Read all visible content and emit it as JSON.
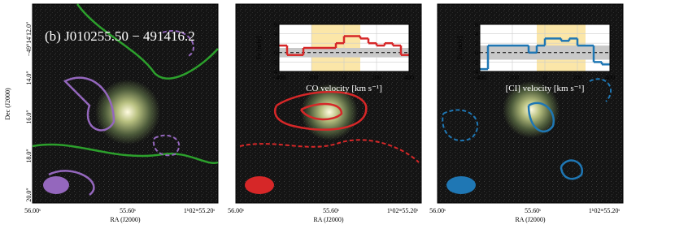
{
  "panel_label": "(b) J010255.50 − 491416.2",
  "y_axis_label": "Dec (J2000)",
  "y_ticks": [
    "−49°14′12.0″",
    "14.0″",
    "16.0″",
    "18.0″",
    "20.0″"
  ],
  "x_axis_label": "RA (J2000)",
  "x_ticks": [
    "56.00ˢ",
    "55.60ˢ",
    "1ʰ02ᵐ55.20ˢ"
  ],
  "chart_data": [
    {
      "type": "step",
      "xlabel": "CO velocity [km s⁻¹]",
      "ylabel": "Fν [mJy]",
      "color": "#d62728",
      "x": [
        -375,
        -325,
        -275,
        -225,
        -175,
        -125,
        -75,
        -25,
        25,
        75,
        125,
        175,
        225,
        275,
        325,
        375
      ],
      "values": [
        1.5,
        -0.5,
        -0.5,
        1,
        1,
        1,
        1,
        2,
        3.5,
        3.5,
        3,
        2,
        1.5,
        2,
        1.5,
        -0.5
      ],
      "xlim": [
        -400,
        400
      ],
      "ylim": [
        -4,
        6
      ],
      "xticks": [
        {
          "value": -400,
          "label": "−400"
        },
        {
          "value": -200,
          "label": "−200"
        },
        0,
        200,
        400
      ],
      "yticks": [
        {
          "value": -4,
          "label": "−4"
        },
        {
          "value": -2,
          "label": "−2"
        },
        0,
        2,
        4,
        6
      ],
      "shade_x": [
        -200,
        100
      ],
      "rms": 1
    },
    {
      "type": "step",
      "xlabel": "[CI] velocity [km s⁻¹]",
      "ylabel": "Fν [mJy]",
      "color": "#1f77b4",
      "x": [
        -375,
        -325,
        -275,
        -225,
        -175,
        -125,
        -75,
        -25,
        25,
        75,
        125,
        175,
        225,
        275,
        325,
        375
      ],
      "values": [
        -3.5,
        1.5,
        1.5,
        1.5,
        1.5,
        1.5,
        0,
        1.5,
        3,
        3,
        2.5,
        3,
        1.5,
        1.5,
        -2,
        -2.5
      ],
      "xlim": [
        -400,
        400
      ],
      "ylim": [
        -4,
        6
      ],
      "xticks": [
        {
          "value": -400,
          "label": "−400"
        },
        {
          "value": -200,
          "label": "−200"
        },
        0,
        200,
        400
      ],
      "yticks": [
        {
          "value": -4,
          "label": "−4"
        },
        {
          "value": -2,
          "label": "−2"
        },
        0,
        2,
        4,
        6
      ],
      "shade_x": [
        -50,
        250
      ],
      "rms": 1.5
    }
  ]
}
